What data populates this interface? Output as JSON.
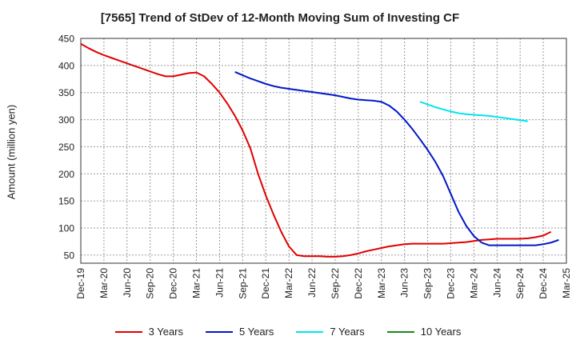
{
  "chart_data": {
    "type": "line",
    "title": "[7565]  Trend of StDev of 12-Month Moving Sum of Investing CF",
    "xlabel": "",
    "ylabel": "Amount (million yen)",
    "ylim": [
      35,
      450
    ],
    "yticks": [
      50,
      100,
      150,
      200,
      250,
      300,
      350,
      400,
      450
    ],
    "grid": true,
    "legend_position": "bottom",
    "x_tick_labels": [
      "Dec-19",
      "Mar-20",
      "Jun-20",
      "Sep-20",
      "Dec-20",
      "Mar-21",
      "Jun-21",
      "Sep-21",
      "Dec-21",
      "Mar-22",
      "Jun-22",
      "Sep-22",
      "Dec-22",
      "Mar-23",
      "Jun-23",
      "Sep-23",
      "Dec-23",
      "Mar-24",
      "Jun-24",
      "Sep-24",
      "Dec-24",
      "Mar-25"
    ],
    "x_start": "2019-12",
    "series": [
      {
        "name": "3 Years",
        "color": "#e00000",
        "start": "2019-12",
        "values": [
          440,
          432,
          425,
          419,
          414,
          409,
          404,
          399,
          394,
          389,
          384,
          380,
          380,
          383,
          386,
          387,
          380,
          366,
          350,
          330,
          307,
          280,
          247,
          200,
          160,
          125,
          93,
          66,
          50,
          48,
          48,
          48,
          47,
          47,
          48,
          50,
          53,
          57,
          60,
          63,
          66,
          68,
          70,
          71,
          71,
          71,
          71,
          71,
          72,
          73,
          74,
          76,
          78,
          79,
          80,
          80,
          80,
          80,
          81,
          83,
          86,
          93
        ]
      },
      {
        "name": "5 Years",
        "color": "#0018c8",
        "start": "2021-08",
        "values": [
          388,
          382,
          376,
          371,
          366,
          362,
          359,
          357,
          355,
          353,
          351,
          349,
          347,
          345,
          342,
          339,
          337,
          336,
          335,
          333,
          326,
          315,
          300,
          283,
          264,
          244,
          222,
          196,
          163,
          130,
          104,
          85,
          73,
          68,
          68,
          68,
          68,
          68,
          68,
          68,
          70,
          73,
          78
        ]
      },
      {
        "name": "7 Years",
        "color": "#00e5ee",
        "start": "2023-08",
        "values": [
          333,
          328,
          323,
          319,
          315,
          312,
          310,
          309,
          308,
          307,
          305,
          303,
          301,
          299,
          297
        ]
      },
      {
        "name": "10 Years",
        "color": "#1a8a1a",
        "start": "2019-12",
        "values": []
      }
    ]
  }
}
